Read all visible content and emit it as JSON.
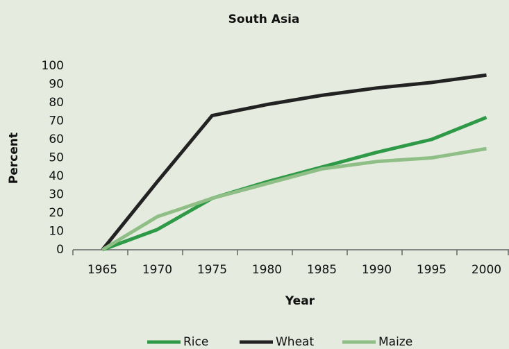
{
  "chart_data": {
    "type": "line",
    "title": "South Asia",
    "x_label": "Year",
    "y_label": "Percent",
    "categories": [
      "1965",
      "1970",
      "1975",
      "1980",
      "1985",
      "1990",
      "1995",
      "2000"
    ],
    "series": [
      {
        "name": "Rice",
        "color": "#2e9a47",
        "values": [
          0,
          11,
          28,
          37,
          45,
          53,
          60,
          72
        ]
      },
      {
        "name": "Wheat",
        "color": "#222222",
        "values": [
          0,
          37,
          73,
          79,
          84,
          88,
          91,
          95
        ]
      },
      {
        "name": "Maize",
        "color": "#8fbf86",
        "values": [
          0,
          18,
          28,
          36,
          44,
          48,
          50,
          55
        ]
      }
    ],
    "ylim": [
      0,
      100
    ],
    "yticks": [
      0,
      10,
      20,
      30,
      40,
      50,
      60,
      70,
      80,
      90,
      100
    ],
    "grid": false,
    "legend": "bottom"
  }
}
